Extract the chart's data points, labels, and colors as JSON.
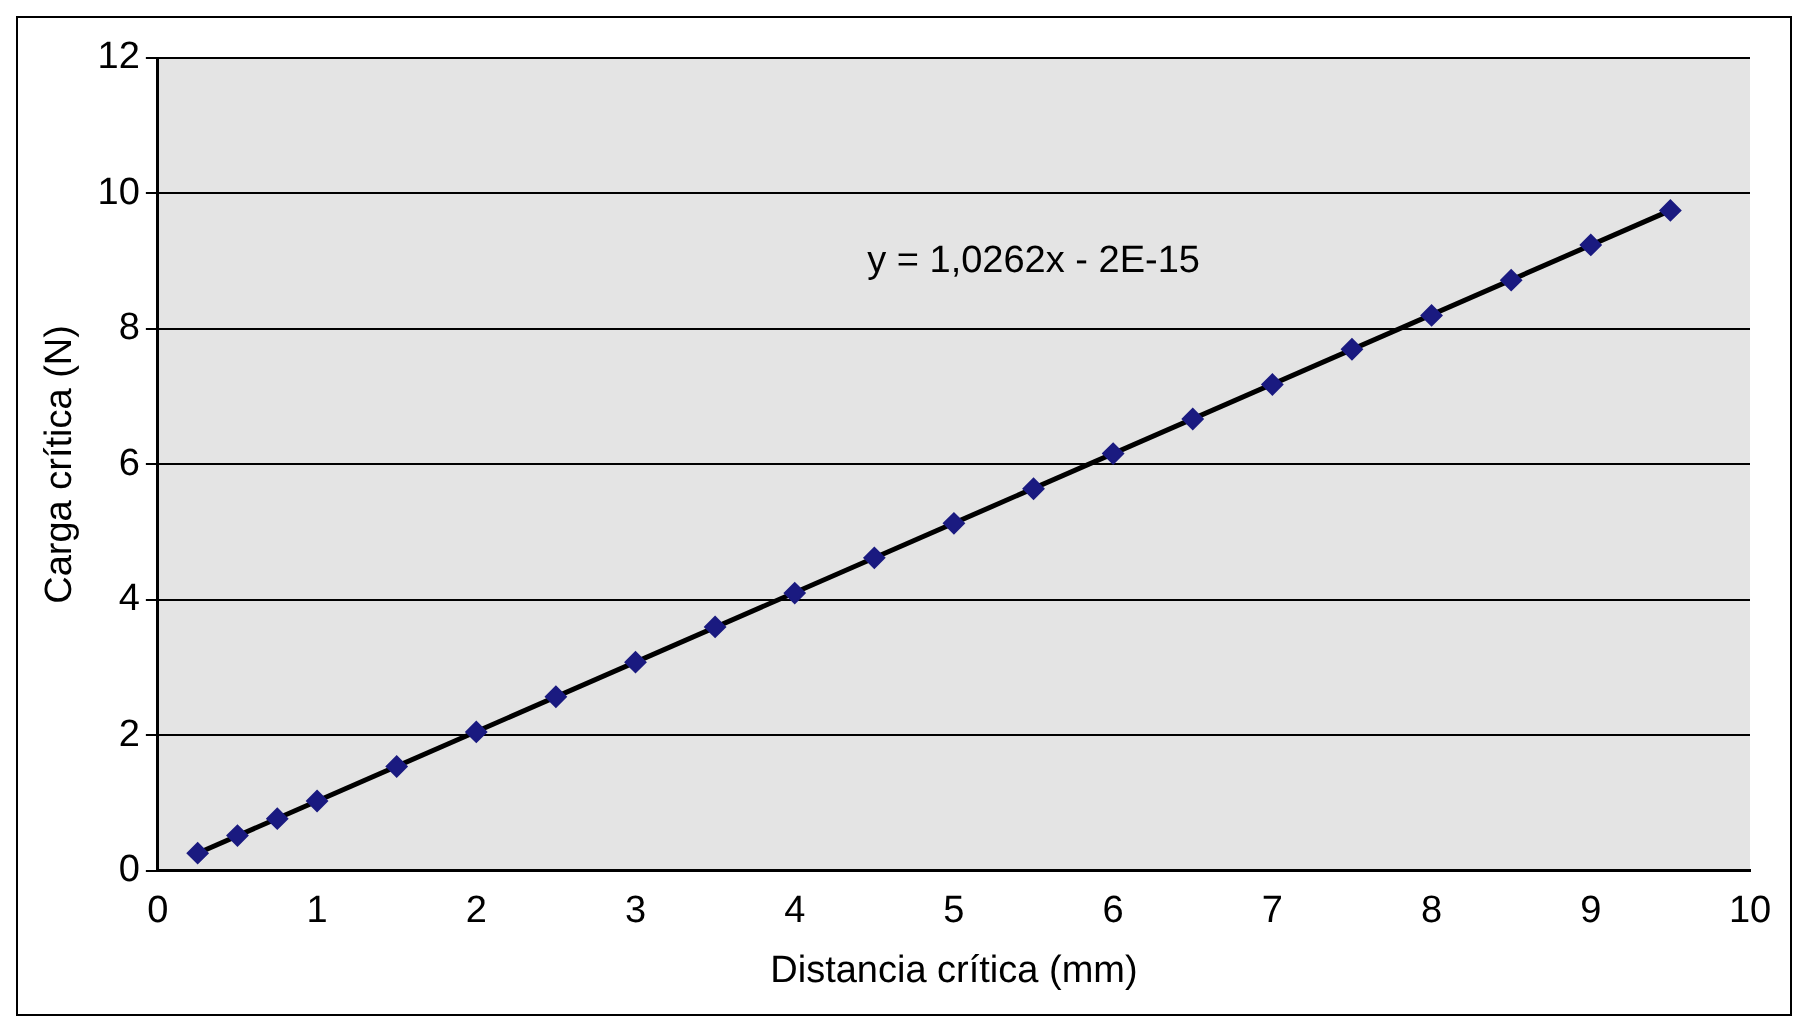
{
  "chart_data": {
    "type": "scatter",
    "xlabel": "Distancia crítica (mm)",
    "ylabel": "Carga crítica (N)",
    "xlim": [
      0,
      10
    ],
    "xticks": [
      0,
      1,
      2,
      3,
      4,
      5,
      6,
      7,
      8,
      9,
      10
    ],
    "ylim": [
      0,
      12
    ],
    "yticks": [
      0,
      2,
      4,
      6,
      8,
      10,
      12
    ],
    "grid": "y",
    "legend": false,
    "marker": "diamond",
    "annotations": [
      "y = 1,0262x - 2E-15"
    ],
    "series": [
      {
        "type": "scatter",
        "color": "#1a1a80",
        "x": [
          0.25,
          0.5,
          0.75,
          1,
          1.5,
          2,
          2.5,
          3,
          3.5,
          4,
          4.5,
          5,
          5.5,
          6,
          6.5,
          7,
          7.5,
          8,
          8.5,
          9,
          9.5
        ],
        "values": [
          0.26,
          0.52,
          0.77,
          1.03,
          1.54,
          2.05,
          2.57,
          3.08,
          3.6,
          4.1,
          4.62,
          5.13,
          5.64,
          6.16,
          6.67,
          7.18,
          7.7,
          8.2,
          8.72,
          9.24,
          9.75
        ]
      },
      {
        "type": "line",
        "color": "#000000",
        "marker": "none",
        "x": [
          0.25,
          9.5
        ],
        "values": [
          0.26,
          9.75
        ]
      }
    ]
  }
}
